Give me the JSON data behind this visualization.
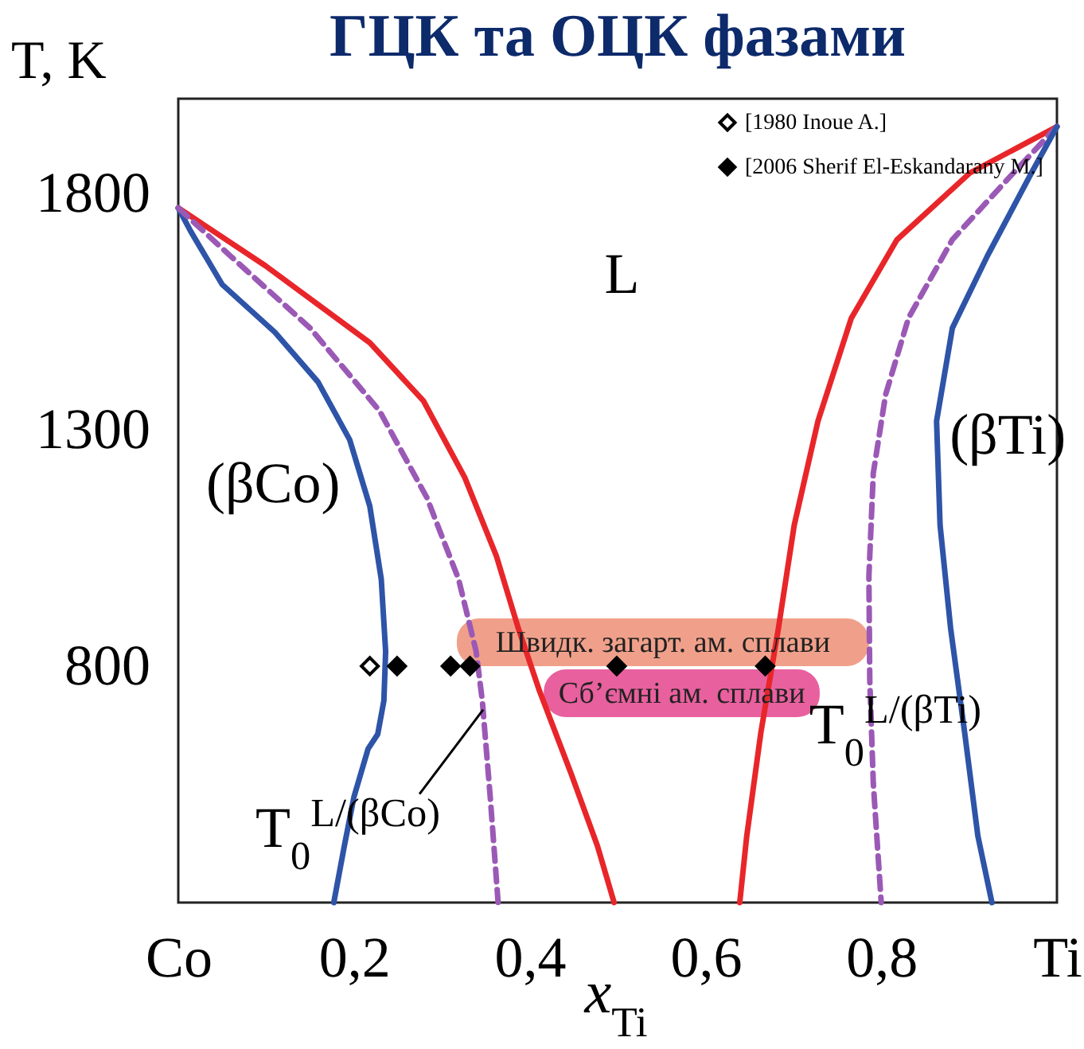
{
  "chart_data": {
    "type": "line",
    "title": "ГЦК та ОЦК фазами",
    "xlabel": "x$_{Ti}$",
    "ylabel": "T, K",
    "xlim": [
      0,
      1
    ],
    "ylim": [
      300,
      2000
    ],
    "xticks": [
      {
        "value": 0,
        "label": "Co"
      },
      {
        "value": 0.2,
        "label": "0,2"
      },
      {
        "value": 0.4,
        "label": "0,4"
      },
      {
        "value": 0.6,
        "label": "0,6"
      },
      {
        "value": 0.8,
        "label": "0,8"
      },
      {
        "value": 1,
        "label": "Ti"
      }
    ],
    "yticks": [
      800,
      1300,
      1800
    ],
    "grid": false,
    "legend": "top right",
    "series": [
      {
        "color": "#e8262a",
        "line_style": "solid",
        "x": [
          0,
          0.099,
          0.218,
          0.279,
          0.326,
          0.362,
          0.387,
          0.411,
          0.447,
          0.477,
          0.496
        ],
        "values": [
          1769,
          1647,
          1484,
          1361,
          1199,
          1033,
          880,
          748,
          573,
          420,
          300
        ]
      },
      {
        "color": "#2e54a8",
        "line_style": "solid",
        "x": [
          0,
          0.014,
          0.05,
          0.11,
          0.159,
          0.195,
          0.218,
          0.231,
          0.236,
          0.234,
          0.227,
          0.216,
          0.2,
          0.189,
          0.177
        ],
        "values": [
          1769,
          1720,
          1607,
          1506,
          1401,
          1279,
          1138,
          984,
          831,
          727,
          656,
          625,
          524,
          420,
          300
        ]
      },
      {
        "color": "#9b59b6",
        "line_style": "dashed",
        "x": [
          0,
          0.059,
          0.15,
          0.229,
          0.283,
          0.319,
          0.339,
          0.346,
          0.355,
          0.364
        ],
        "values": [
          1769,
          1668,
          1515,
          1340,
          1156,
          984,
          831,
          727,
          524,
          300
        ]
      },
      {
        "color": "#e8262a",
        "line_style": "solid",
        "x": [
          1,
          0.901,
          0.818,
          0.766,
          0.728,
          0.701,
          0.683,
          0.663,
          0.647,
          0.639
        ],
        "values": [
          1941,
          1843,
          1702,
          1536,
          1318,
          1098,
          880,
          659,
          441,
          300
        ]
      },
      {
        "color": "#9b59b6",
        "line_style": "dashed",
        "x": [
          1,
          0.946,
          0.881,
          0.831,
          0.805,
          0.791,
          0.786,
          0.787,
          0.791,
          0.8
        ],
        "values": [
          1941,
          1834,
          1702,
          1536,
          1374,
          1208,
          990,
          769,
          552,
          300
        ]
      },
      {
        "color": "#2e54a8",
        "line_style": "solid",
        "x": [
          1,
          0.971,
          0.921,
          0.881,
          0.863,
          0.867,
          0.879,
          0.895,
          0.91,
          0.926
        ],
        "values": [
          1941,
          1843,
          1668,
          1515,
          1318,
          1098,
          880,
          659,
          441,
          300
        ]
      },
      {
        "type": "scatter",
        "name": "[1980 Inoue A.]",
        "color": "#ffffff",
        "marker": "diamond",
        "x": [
          0.218
        ],
        "values": [
          800
        ]
      },
      {
        "type": "scatter",
        "name": "[2006 Sherif El-Eskandarany M.]",
        "color": "#000000",
        "marker": "diamond",
        "x": [
          0.249,
          0.31,
          0.332,
          0.499,
          0.668
        ],
        "values": [
          800,
          800,
          800,
          800,
          800
        ]
      }
    ],
    "bands": [
      {
        "axis": "x",
        "from": 0.317,
        "to": 0.786,
        "label": "Швидк. загарт. ам. сплави",
        "color": "#f0a08a"
      },
      {
        "axis": "x",
        "from": 0.416,
        "to": 0.73,
        "label": "Сб’ємні ам. сплави",
        "color": "#e8609e"
      }
    ],
    "annotations": [
      "L",
      "(βCo)",
      "(βTi)",
      {
        "text": "T$_{0}$$^{L/(βCo)}$",
        "x": 0.347,
        "y": 708
      },
      "T$_{0}$$^{L/(βTi)}$"
    ]
  }
}
